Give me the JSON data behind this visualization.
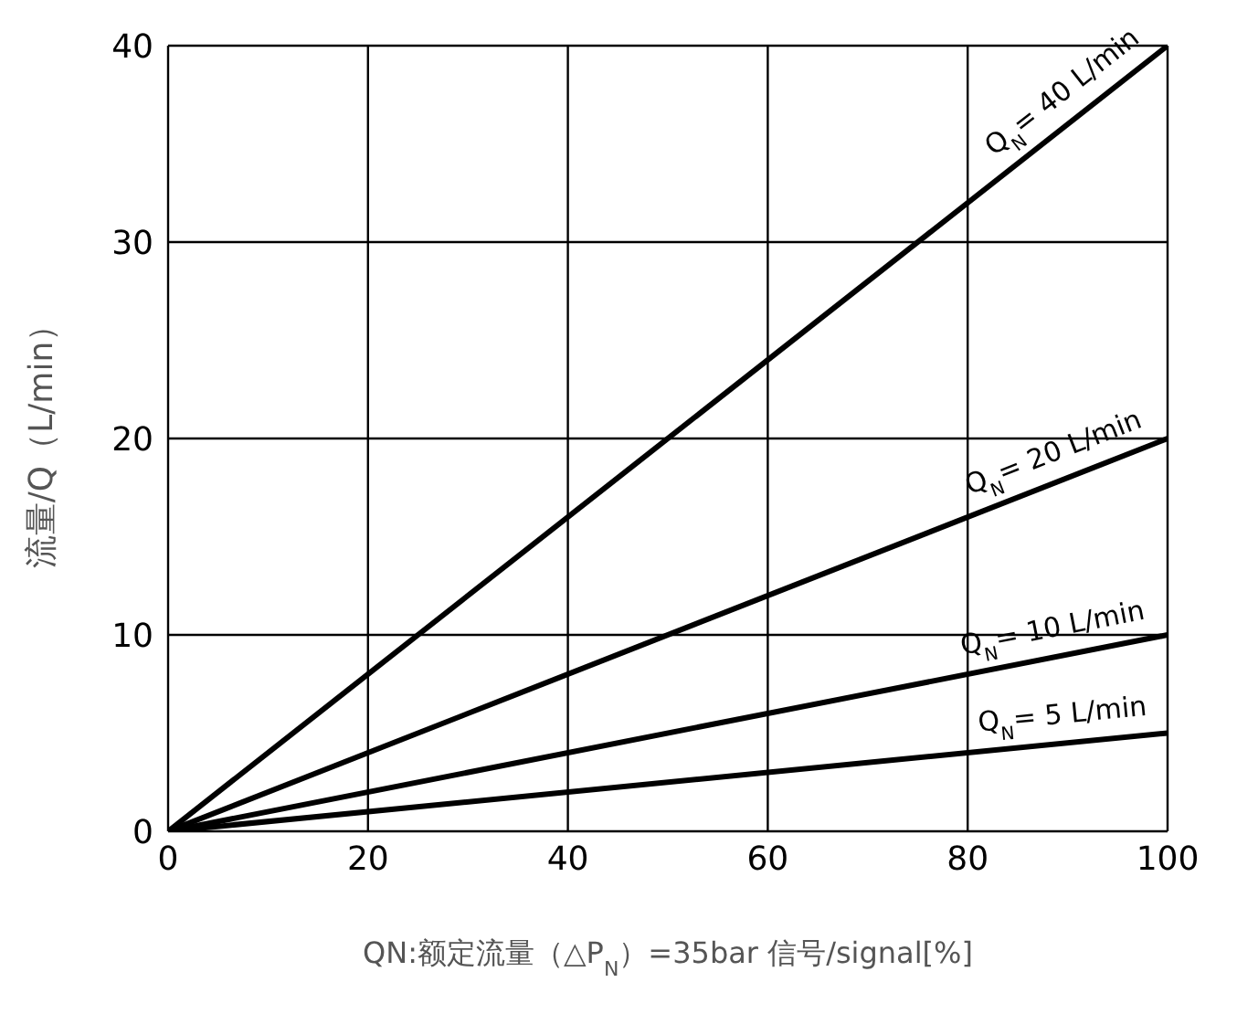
{
  "chart_data": {
    "type": "line",
    "xlabel": "QN:额定流量（△P$_{N}$）=35bar 信号/signal[%]",
    "ylabel": "流量/Q（L/min）",
    "x": [
      0,
      100
    ],
    "xlim": [
      0,
      100
    ],
    "xticks": [
      0,
      20,
      40,
      60,
      80,
      100
    ],
    "ylim": [
      0,
      40
    ],
    "yticks": [
      0,
      10,
      20,
      30,
      40
    ],
    "grid": true,
    "marker": "none",
    "line_style": "solid",
    "legend": false,
    "series": [
      {
        "name": "Q$_{N}$= 40 L/min",
        "color": "#000000",
        "values": [
          0,
          40
        ]
      },
      {
        "name": "Q$_{N}$= 20 L/min",
        "color": "#000000",
        "values": [
          0,
          20
        ]
      },
      {
        "name": "Q$_{N}$= 10 L/min",
        "color": "#000000",
        "values": [
          0,
          10
        ]
      },
      {
        "name": "Q$_{N}$= 5 L/min",
        "color": "#000000",
        "values": [
          0,
          5
        ]
      }
    ]
  }
}
